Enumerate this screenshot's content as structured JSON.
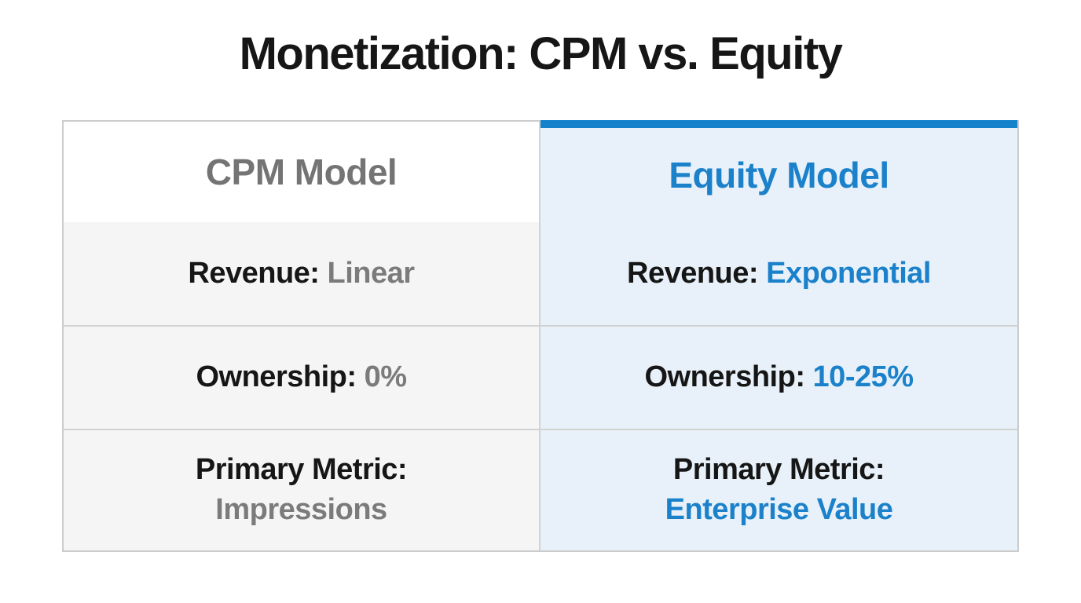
{
  "chart_data": {
    "type": "table",
    "title": "Monetization: CPM vs. Equity",
    "columns": [
      "CPM Model",
      "Equity Model"
    ],
    "rows": [
      {
        "label": "Revenue:",
        "cpm": "Linear",
        "equity": "Exponential"
      },
      {
        "label": "Ownership:",
        "cpm": "0%",
        "equity": "10-25%"
      },
      {
        "label": "Primary Metric:",
        "cpm": "Impressions",
        "equity": "Enterprise Value"
      }
    ],
    "layout": {
      "legend": "none",
      "grid": "table-borders"
    }
  },
  "colors": {
    "accent": "#1583cb",
    "blue_text": "#1b81ca",
    "gray_header": "#747474",
    "gray_value": "#7b7b7b",
    "black_text": "#161616",
    "left_row_bg": "#f5f5f5",
    "left_header_bg": "#ffffff",
    "right_bg": "#e8f1f9",
    "border_inner": "#d2d2d2",
    "border_outer": "#cccccc"
  }
}
